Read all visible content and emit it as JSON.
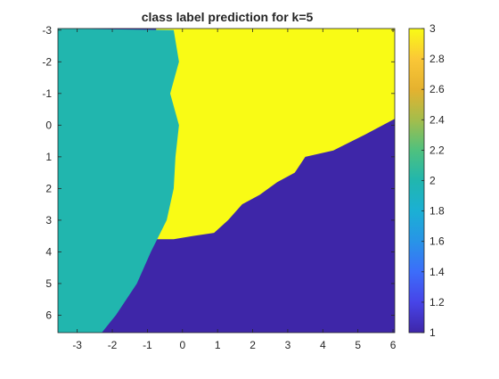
{
  "chart_data": {
    "type": "heatmap",
    "title": "class label prediction for k=5",
    "xlabel": "",
    "ylabel": "",
    "xlim": [
      -3.55,
      6.05
    ],
    "ylim": [
      -3.05,
      6.55
    ],
    "y_reversed": true,
    "x_ticks": [
      -3,
      -2,
      -1,
      0,
      1,
      2,
      3,
      4,
      5,
      6
    ],
    "y_ticks": [
      -3,
      -2,
      -1,
      0,
      1,
      2,
      3,
      4,
      5,
      6
    ],
    "colorbar": {
      "limits": [
        1,
        3
      ],
      "ticks": [
        1,
        1.2,
        1.4,
        1.6,
        1.8,
        2,
        2.2,
        2.4,
        2.6,
        2.8,
        3
      ],
      "tick_labels": [
        "1",
        "1.2",
        "1.4",
        "1.6",
        "1.8",
        "2",
        "2.2",
        "2.4",
        "2.6",
        "2.8",
        "3"
      ],
      "colormap": "parula"
    },
    "class_colors": {
      "1": "#3E26A8",
      "2": "#21B6AE",
      "3": "#F9FB15"
    },
    "grid": false,
    "regions": [
      {
        "class": 2,
        "description_boundary_x_left_of": [
          [
            -3.0,
            -0.25
          ],
          [
            -2.0,
            -0.1
          ],
          [
            -1.0,
            -0.35
          ],
          [
            0.0,
            -0.1
          ],
          [
            1.0,
            -0.2
          ],
          [
            2.0,
            -0.25
          ],
          [
            3.0,
            -0.45
          ],
          [
            4.0,
            -0.9
          ],
          [
            5.0,
            -1.3
          ],
          [
            6.0,
            -1.9
          ],
          [
            6.55,
            -2.3
          ]
        ]
      },
      {
        "class": 3,
        "boundary_yellow_purple": [
          [
            -0.25,
            3.6
          ],
          [
            0.3,
            3.5
          ],
          [
            0.9,
            3.4
          ],
          [
            1.3,
            3.0
          ],
          [
            1.7,
            2.5
          ],
          [
            2.2,
            2.2
          ],
          [
            2.7,
            1.8
          ],
          [
            3.2,
            1.5
          ],
          [
            3.5,
            1.0
          ],
          [
            4.3,
            0.8
          ],
          [
            5.2,
            0.3
          ],
          [
            6.05,
            -0.2
          ]
        ]
      },
      {
        "class": 1,
        "description": "lower-right region below the yellow boundary"
      }
    ]
  }
}
